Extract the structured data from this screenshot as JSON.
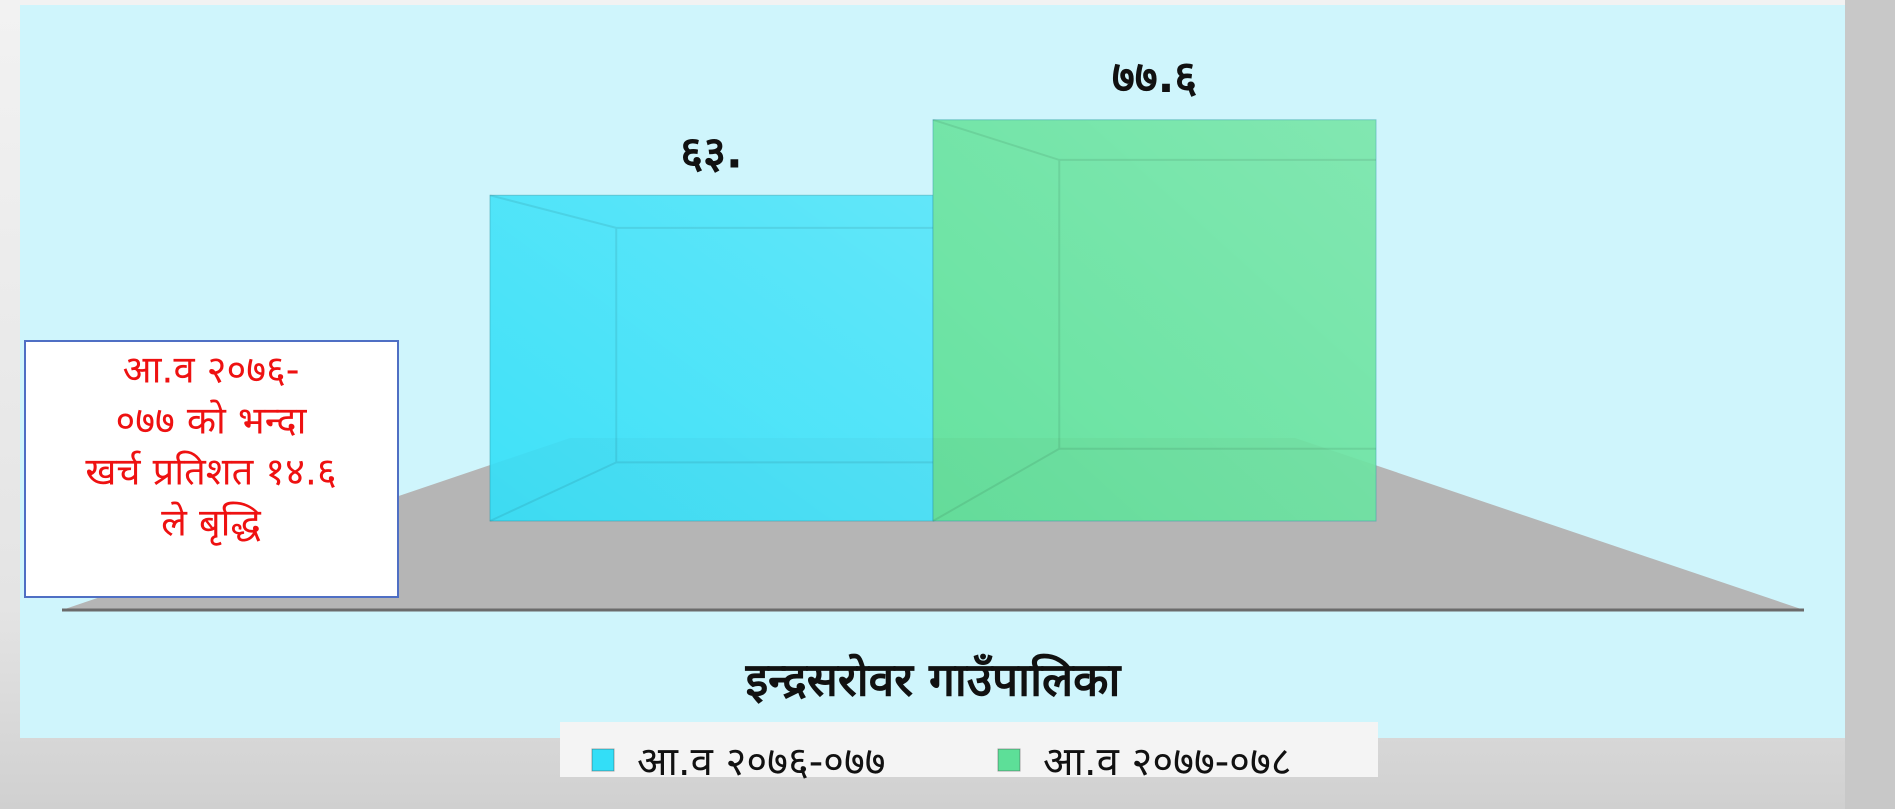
{
  "chart_data": {
    "type": "bar",
    "categories": [
      "इन्द्रसरोवर गाउँपालिका"
    ],
    "series": [
      {
        "name": "आ.व २०७६-०७७",
        "color": "#33def7",
        "values": [
          63
        ],
        "value_labels": [
          "६३."
        ]
      },
      {
        "name": "आ.व २०७७-०७८",
        "color": "#5ddf98",
        "values": [
          77.6
        ],
        "value_labels": [
          "७७.६"
        ]
      }
    ],
    "annotation": [
      "आ.व २०७६-",
      "०७७ को भन्दा",
      "खर्च प्रतिशत १४.६",
      "ले बृद्धि"
    ],
    "legend": "bottom"
  }
}
